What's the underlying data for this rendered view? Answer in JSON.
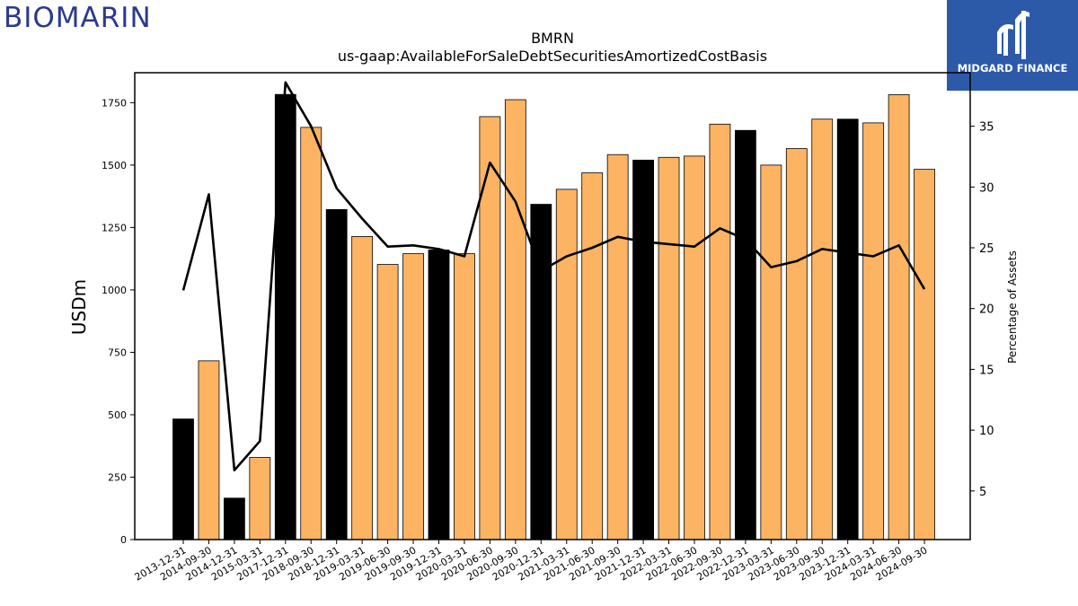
{
  "logos": {
    "left_text": "BIOMARIN",
    "right_text": "MIDGARD FINANCE"
  },
  "colors": {
    "bar_fy": "#000000",
    "bar_quarter": "#fdb462",
    "line": "#000000",
    "logo_left": "#2b3a8c",
    "logo_right_bg": "#2d5aa8"
  },
  "chart_data": {
    "type": "bar",
    "title": "BMRN",
    "subtitle": "us-gaap:AvailableForSaleDebtSecuritiesAmortizedCostBasis",
    "ylabel": "USDm",
    "ylabel_right": "Percentage of Assets",
    "ylim": [
      0,
      1870
    ],
    "ylim_right": [
      1.0,
      39.4
    ],
    "yticks": [
      0,
      250,
      500,
      750,
      1000,
      1250,
      1500,
      1750
    ],
    "yticks_right": [
      5,
      10,
      15,
      20,
      25,
      30,
      35
    ],
    "categories": [
      "2013-12-31",
      "2014-09-30",
      "2014-12-31",
      "2015-03-31",
      "2017-12-31",
      "2018-09-30",
      "2018-12-31",
      "2019-03-31",
      "2019-06-30",
      "2019-09-30",
      "2019-12-31",
      "2020-03-31",
      "2020-06-30",
      "2020-09-30",
      "2020-12-31",
      "2021-03-31",
      "2021-06-30",
      "2021-09-30",
      "2021-12-31",
      "2022-03-31",
      "2022-06-30",
      "2022-09-30",
      "2022-12-31",
      "2023-03-31",
      "2023-06-30",
      "2023-09-30",
      "2023-12-31",
      "2024-03-31",
      "2024-06-30",
      "2024-09-30"
    ],
    "series": [
      {
        "type": "bar",
        "values": [
          483,
          716,
          166,
          329,
          1783,
          1651,
          1322,
          1214,
          1102,
          1145,
          1160,
          1145,
          1694,
          1762,
          1343,
          1403,
          1469,
          1542,
          1520,
          1531,
          1536,
          1664,
          1639,
          1500,
          1566,
          1684,
          1684,
          1669,
          1782,
          1483
        ],
        "fiscal_year_end": [
          true,
          false,
          true,
          false,
          true,
          false,
          true,
          false,
          false,
          false,
          true,
          false,
          false,
          false,
          true,
          false,
          false,
          false,
          true,
          false,
          false,
          false,
          true,
          false,
          false,
          false,
          true,
          false,
          false,
          false
        ]
      },
      {
        "type": "line",
        "axis": "right",
        "values": [
          21.5,
          29.4,
          6.7,
          9.1,
          38.6,
          35.0,
          29.9,
          27.4,
          25.1,
          25.2,
          24.9,
          24.3,
          32.0,
          28.8,
          23.1,
          24.3,
          25.0,
          25.9,
          25.5,
          25.3,
          25.1,
          26.6,
          25.7,
          23.4,
          23.9,
          24.9,
          24.6,
          24.3,
          25.2,
          21.6
        ]
      }
    ],
    "grid": false,
    "legend": "none"
  }
}
